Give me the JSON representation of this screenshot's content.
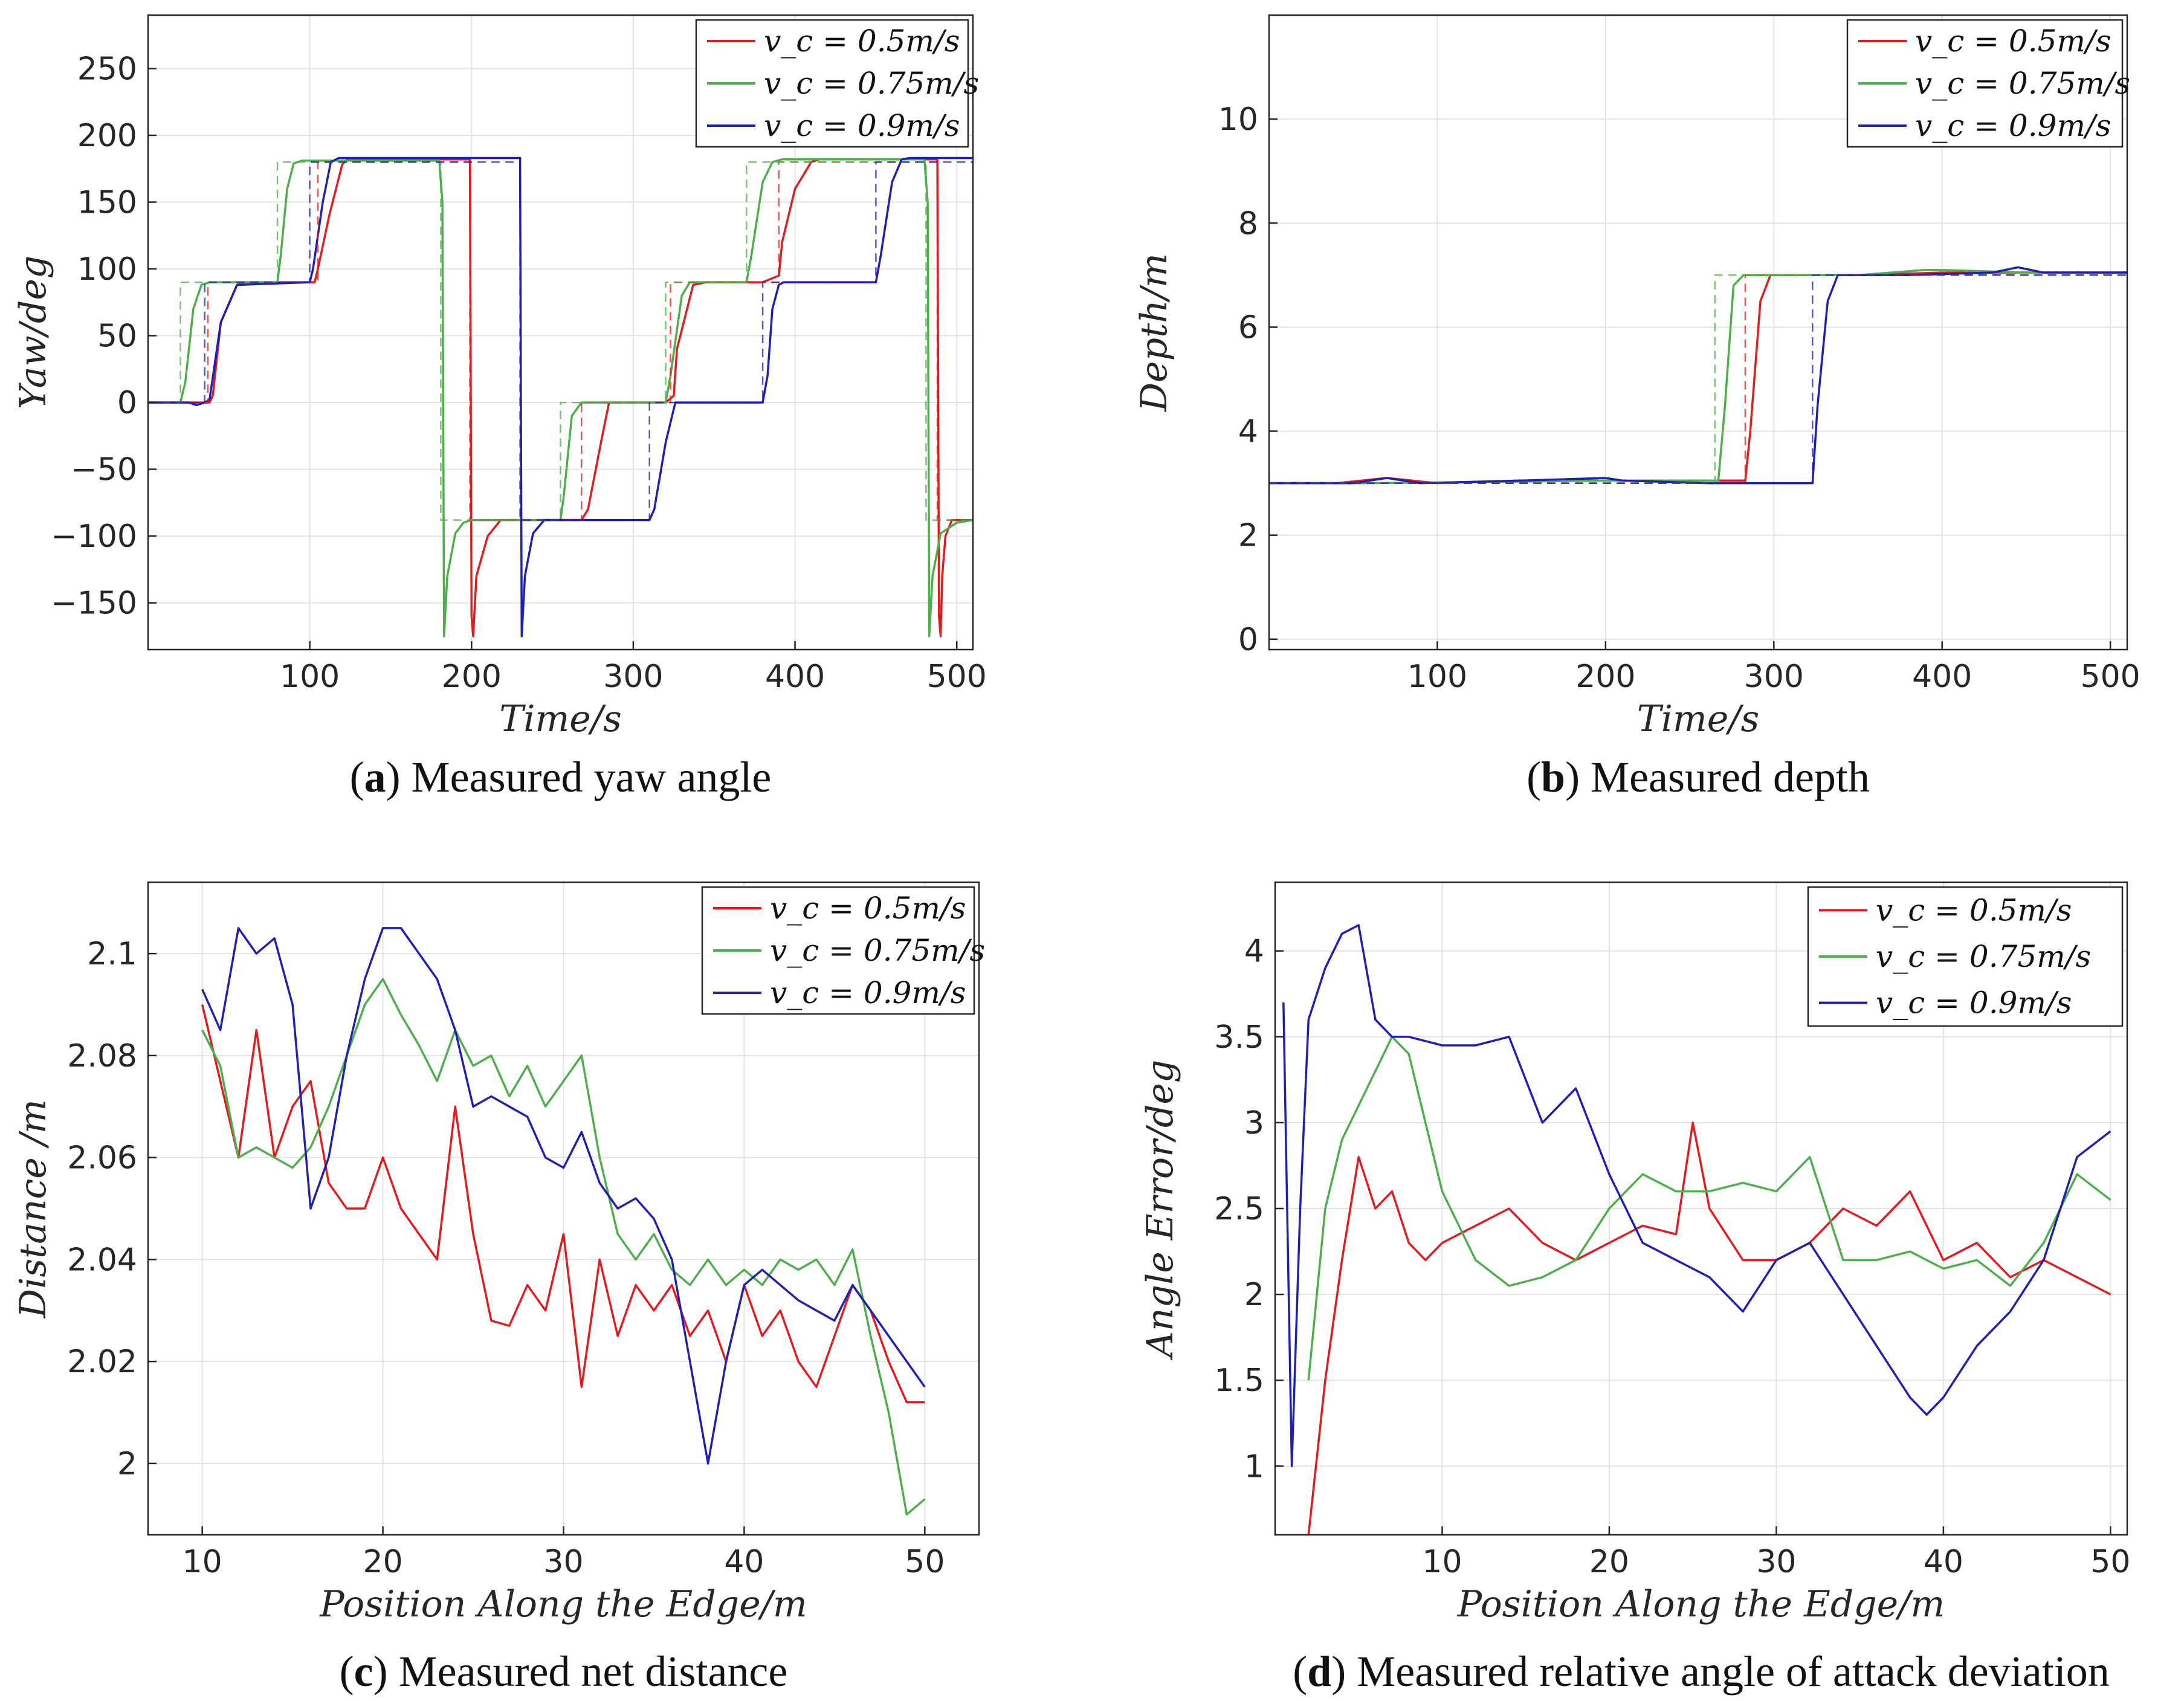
{
  "legend_labels": [
    "v_c = 0.5m/s",
    "v_c = 0.75m/s",
    "v_c = 0.9m/s"
  ],
  "colors": {
    "red": "#e41a1c",
    "green": "#4daf4a",
    "blue": "#1f1fb4"
  },
  "chart_data": [
    {
      "type": "line",
      "caption_letter": "a",
      "caption_text": " Measured yaw angle",
      "xlabel": "Time/s",
      "ylabel": "Yaw/deg",
      "xlim": [
        0,
        510
      ],
      "ylim": [
        -185,
        290
      ],
      "xticks": [
        100,
        200,
        300,
        400,
        500
      ],
      "yticks": [
        -150,
        -100,
        -50,
        0,
        50,
        100,
        150,
        200,
        250
      ],
      "grid": true,
      "legend": "top-right",
      "series": [
        {
          "name": "v_c = 0.5m/s",
          "color": "red",
          "style": "solid",
          "x": [
            0,
            38,
            40,
            45,
            55,
            60,
            103,
            105,
            112,
            120,
            123,
            180,
            199,
            200,
            201,
            203,
            210,
            218,
            235,
            255,
            268,
            272,
            280,
            285,
            320,
            325,
            327,
            337,
            345,
            380,
            390,
            392,
            400,
            410,
            415,
            462,
            488,
            489,
            490,
            491,
            493,
            497,
            510
          ],
          "y": [
            0,
            0,
            5,
            60,
            88,
            90,
            90,
            100,
            140,
            178,
            182,
            182,
            182,
            -160,
            -175,
            -130,
            -100,
            -88,
            -88,
            -88,
            -88,
            -80,
            -30,
            0,
            0,
            5,
            40,
            88,
            90,
            90,
            95,
            120,
            160,
            180,
            182,
            182,
            182,
            -160,
            -175,
            -130,
            -100,
            -88,
            -88
          ]
        },
        {
          "name": "v_c = 0.75m/s",
          "color": "green",
          "style": "solid",
          "x": [
            0,
            20,
            23,
            28,
            33,
            38,
            80,
            82,
            86,
            90,
            95,
            180,
            182,
            183,
            185,
            190,
            195,
            200,
            255,
            257,
            262,
            268,
            320,
            323,
            330,
            335,
            370,
            373,
            380,
            386,
            392,
            480,
            482,
            483,
            485,
            490,
            500,
            510
          ],
          "y": [
            0,
            0,
            15,
            70,
            88,
            90,
            90,
            110,
            160,
            179,
            181,
            181,
            150,
            -175,
            -130,
            -98,
            -90,
            -88,
            -88,
            -70,
            -10,
            0,
            0,
            20,
            80,
            90,
            90,
            110,
            165,
            180,
            182,
            182,
            150,
            -175,
            -130,
            -98,
            -90,
            -88
          ]
        },
        {
          "name": "v_c = 0.9m/s",
          "color": "blue",
          "style": "solid",
          "x": [
            0,
            25,
            30,
            35,
            38,
            45,
            55,
            100,
            102,
            108,
            113,
            118,
            230,
            231,
            233,
            238,
            245,
            265,
            310,
            313,
            320,
            326,
            332,
            380,
            383,
            386,
            390,
            393,
            450,
            453,
            460,
            466,
            471,
            510
          ],
          "y": [
            0,
            0,
            -2,
            0,
            2,
            60,
            88,
            90,
            100,
            150,
            180,
            183,
            183,
            -175,
            -130,
            -98,
            -88,
            -88,
            -88,
            -80,
            -30,
            0,
            0,
            0,
            20,
            70,
            88,
            90,
            90,
            110,
            165,
            182,
            183,
            183
          ]
        },
        {
          "name": "ref 0.5",
          "color": "red",
          "style": "dashed",
          "x": [
            0,
            37,
            37,
            105,
            105,
            199,
            199,
            268,
            268,
            323,
            323,
            390,
            390,
            488,
            488,
            510
          ],
          "y": [
            0,
            0,
            90,
            90,
            180,
            180,
            -88,
            -88,
            0,
            0,
            90,
            90,
            180,
            180,
            -88,
            -88
          ]
        },
        {
          "name": "ref 0.75",
          "color": "green",
          "style": "dashed",
          "x": [
            0,
            20,
            20,
            80,
            80,
            181,
            181,
            255,
            255,
            320,
            320,
            370,
            370,
            481,
            481,
            510
          ],
          "y": [
            0,
            0,
            90,
            90,
            180,
            180,
            -88,
            -88,
            0,
            0,
            90,
            90,
            180,
            180,
            -88,
            -88
          ]
        },
        {
          "name": "ref 0.9",
          "color": "blue",
          "style": "dashed",
          "x": [
            0,
            35,
            35,
            100,
            100,
            230,
            230,
            310,
            310,
            380,
            380,
            450,
            450,
            510
          ],
          "y": [
            0,
            0,
            90,
            90,
            180,
            180,
            -88,
            -88,
            0,
            0,
            90,
            90,
            180,
            180
          ]
        }
      ]
    },
    {
      "type": "line",
      "caption_letter": "b",
      "caption_text": " Measured depth",
      "xlabel": "Time/s",
      "ylabel": "Depth/m",
      "xlim": [
        0,
        510
      ],
      "ylim": [
        -0.2,
        12
      ],
      "xticks": [
        100,
        200,
        300,
        400,
        500
      ],
      "yticks": [
        0,
        2,
        4,
        6,
        8,
        10
      ],
      "grid": true,
      "legend": "top-right",
      "series": [
        {
          "name": "v_c = 0.5m/s",
          "color": "red",
          "style": "solid",
          "x": [
            0,
            40,
            70,
            100,
            150,
            200,
            250,
            283,
            286,
            292,
            298,
            350,
            400,
            450,
            510
          ],
          "y": [
            3.0,
            3.0,
            3.1,
            3.0,
            3.05,
            3.05,
            3.05,
            3.05,
            4.0,
            6.5,
            7.0,
            7.0,
            7.05,
            7.05,
            7.05
          ]
        },
        {
          "name": "v_c = 0.75m/s",
          "color": "green",
          "style": "solid",
          "x": [
            0,
            60,
            120,
            200,
            260,
            267,
            271,
            276,
            282,
            350,
            390,
            400,
            450,
            510
          ],
          "y": [
            3.0,
            3.0,
            3.02,
            3.05,
            3.05,
            3.05,
            4.5,
            6.8,
            7.0,
            7.0,
            7.1,
            7.1,
            7.05,
            7.05
          ]
        },
        {
          "name": "v_c = 0.9m/s",
          "color": "blue",
          "style": "solid",
          "x": [
            0,
            50,
            70,
            90,
            150,
            200,
            210,
            260,
            323,
            326,
            332,
            338,
            380,
            430,
            445,
            460,
            510
          ],
          "y": [
            3.0,
            3.0,
            3.1,
            3.0,
            3.05,
            3.1,
            3.05,
            3.0,
            3.0,
            4.5,
            6.5,
            7.0,
            7.0,
            7.05,
            7.15,
            7.05,
            7.05
          ]
        },
        {
          "name": "ref 0.5",
          "color": "red",
          "style": "dashed",
          "x": [
            0,
            283,
            283,
            510
          ],
          "y": [
            3.0,
            3.0,
            7.0,
            7.0
          ]
        },
        {
          "name": "ref 0.75",
          "color": "green",
          "style": "dashed",
          "x": [
            0,
            265,
            265,
            510
          ],
          "y": [
            3.0,
            3.0,
            7.0,
            7.0
          ]
        },
        {
          "name": "ref 0.9",
          "color": "blue",
          "style": "dashed",
          "x": [
            0,
            323,
            323,
            510
          ],
          "y": [
            3.0,
            3.0,
            7.0,
            7.0
          ]
        }
      ]
    },
    {
      "type": "line",
      "caption_letter": "c",
      "caption_text": " Measured net distance",
      "xlabel": "Position Along the Edge/m",
      "ylabel": "Distance /m",
      "xlim": [
        7,
        53
      ],
      "ylim": [
        1.986,
        2.114
      ],
      "xticks": [
        10,
        20,
        30,
        40,
        50
      ],
      "yticks": [
        2,
        2.02,
        2.04,
        2.06,
        2.08,
        2.1
      ],
      "grid": true,
      "legend": "top-right",
      "series": [
        {
          "name": "v_c = 0.5m/s",
          "color": "red",
          "style": "solid",
          "x": [
            10,
            11,
            12,
            13,
            14,
            15,
            16,
            17,
            18,
            19,
            20,
            21,
            22,
            23,
            24,
            25,
            26,
            27,
            28,
            29,
            30,
            31,
            32,
            33,
            34,
            35,
            36,
            37,
            38,
            39,
            40,
            41,
            42,
            43,
            44,
            45,
            46,
            47,
            48,
            49,
            50
          ],
          "y": [
            2.09,
            2.075,
            2.06,
            2.085,
            2.06,
            2.07,
            2.075,
            2.055,
            2.05,
            2.05,
            2.06,
            2.05,
            2.045,
            2.04,
            2.07,
            2.045,
            2.028,
            2.027,
            2.035,
            2.03,
            2.045,
            2.015,
            2.04,
            2.025,
            2.035,
            2.03,
            2.035,
            2.025,
            2.03,
            2.02,
            2.035,
            2.025,
            2.03,
            2.02,
            2.015,
            2.025,
            2.035,
            2.03,
            2.02,
            2.012,
            2.012
          ]
        },
        {
          "name": "v_c = 0.75m/s",
          "color": "green",
          "style": "solid",
          "x": [
            10,
            11,
            12,
            13,
            14,
            15,
            16,
            17,
            18,
            19,
            20,
            21,
            22,
            23,
            24,
            25,
            26,
            27,
            28,
            29,
            30,
            31,
            32,
            33,
            34,
            35,
            36,
            37,
            38,
            39,
            40,
            41,
            42,
            43,
            44,
            45,
            46,
            47,
            48,
            49,
            50
          ],
          "y": [
            2.085,
            2.078,
            2.06,
            2.062,
            2.06,
            2.058,
            2.062,
            2.07,
            2.08,
            2.09,
            2.095,
            2.088,
            2.082,
            2.075,
            2.085,
            2.078,
            2.08,
            2.072,
            2.078,
            2.07,
            2.075,
            2.08,
            2.06,
            2.045,
            2.04,
            2.045,
            2.038,
            2.035,
            2.04,
            2.035,
            2.038,
            2.035,
            2.04,
            2.038,
            2.04,
            2.035,
            2.042,
            2.025,
            2.01,
            1.99,
            1.993
          ]
        },
        {
          "name": "v_c = 0.9m/s",
          "color": "blue",
          "style": "solid",
          "x": [
            10,
            11,
            12,
            13,
            14,
            15,
            16,
            17,
            18,
            19,
            20,
            21,
            22,
            23,
            24,
            25,
            26,
            27,
            28,
            29,
            30,
            31,
            32,
            33,
            34,
            35,
            36,
            37,
            38,
            39,
            40,
            41,
            42,
            43,
            44,
            45,
            46,
            47,
            48,
            49,
            50
          ],
          "y": [
            2.093,
            2.085,
            2.105,
            2.1,
            2.103,
            2.09,
            2.05,
            2.06,
            2.08,
            2.095,
            2.105,
            2.105,
            2.1,
            2.095,
            2.085,
            2.07,
            2.072,
            2.07,
            2.068,
            2.06,
            2.058,
            2.065,
            2.055,
            2.05,
            2.052,
            2.048,
            2.04,
            2.02,
            2.0,
            2.02,
            2.035,
            2.038,
            2.035,
            2.032,
            2.03,
            2.028,
            2.035,
            2.03,
            2.025,
            2.02,
            2.015
          ]
        }
      ]
    },
    {
      "type": "line",
      "caption_letter": "d",
      "caption_text": " Measured relative angle of attack deviation",
      "xlabel": "Position Along the Edge/m",
      "ylabel": "Angle Error/deg",
      "xlim": [
        0,
        51
      ],
      "ylim": [
        0.6,
        4.4
      ],
      "xticks": [
        10,
        20,
        30,
        40,
        50
      ],
      "yticks": [
        1,
        1.5,
        2,
        2.5,
        3,
        3.5,
        4
      ],
      "grid": true,
      "legend": "top-right",
      "series": [
        {
          "name": "v_c = 0.5m/s",
          "color": "red",
          "style": "solid",
          "x": [
            2,
            3,
            4,
            5,
            6,
            7,
            8,
            9,
            10,
            12,
            14,
            16,
            18,
            20,
            22,
            24,
            25,
            26,
            28,
            30,
            32,
            34,
            36,
            38,
            40,
            42,
            44,
            46,
            48,
            50
          ],
          "y": [
            0.6,
            1.5,
            2.2,
            2.8,
            2.5,
            2.6,
            2.3,
            2.2,
            2.3,
            2.4,
            2.5,
            2.3,
            2.2,
            2.3,
            2.4,
            2.35,
            3.0,
            2.5,
            2.2,
            2.2,
            2.3,
            2.5,
            2.4,
            2.6,
            2.2,
            2.3,
            2.1,
            2.2,
            2.1,
            2.0
          ]
        },
        {
          "name": "v_c = 0.75m/s",
          "color": "green",
          "style": "solid",
          "x": [
            2,
            3,
            4,
            5,
            6,
            7,
            8,
            9,
            10,
            12,
            14,
            16,
            18,
            20,
            22,
            24,
            26,
            28,
            30,
            32,
            34,
            36,
            38,
            40,
            42,
            44,
            46,
            48,
            50
          ],
          "y": [
            1.5,
            2.5,
            2.9,
            3.1,
            3.3,
            3.5,
            3.4,
            3.0,
            2.6,
            2.2,
            2.05,
            2.1,
            2.2,
            2.5,
            2.7,
            2.6,
            2.6,
            2.65,
            2.6,
            2.8,
            2.2,
            2.2,
            2.25,
            2.15,
            2.2,
            2.05,
            2.3,
            2.7,
            2.55
          ]
        },
        {
          "name": "v_c = 0.9m/s",
          "color": "blue",
          "style": "solid",
          "x": [
            0.5,
            1,
            1.5,
            2,
            3,
            4,
            5,
            6,
            7,
            8,
            10,
            12,
            14,
            16,
            18,
            20,
            22,
            24,
            26,
            28,
            30,
            32,
            34,
            36,
            38,
            39,
            40,
            42,
            44,
            46,
            48,
            50
          ],
          "y": [
            3.7,
            1.0,
            2.5,
            3.6,
            3.9,
            4.1,
            4.15,
            3.6,
            3.5,
            3.5,
            3.45,
            3.45,
            3.5,
            3.0,
            3.2,
            2.7,
            2.3,
            2.2,
            2.1,
            1.9,
            2.2,
            2.3,
            2.0,
            1.7,
            1.4,
            1.3,
            1.4,
            1.7,
            1.9,
            2.2,
            2.8,
            2.95
          ]
        }
      ]
    }
  ]
}
